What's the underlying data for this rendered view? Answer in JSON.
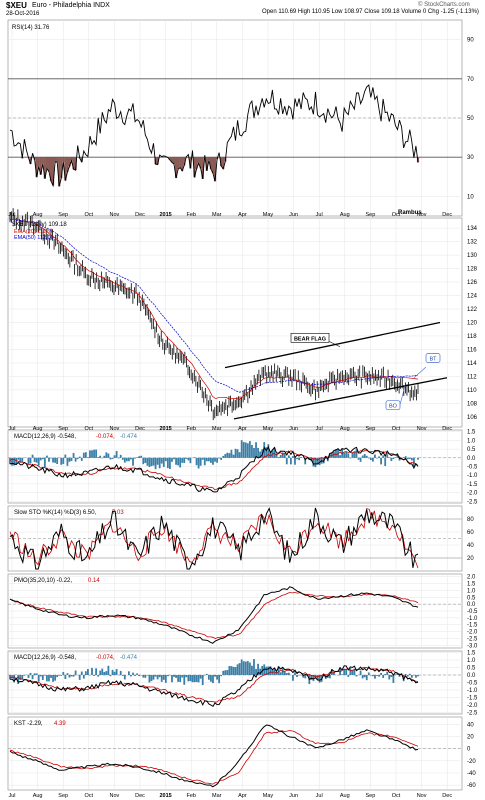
{
  "header": {
    "symbol": "$XEU",
    "name": "Euro - Philadelphia",
    "exchange": "INDX",
    "date": "28-Oct-2016",
    "quote": "Open 110.69  High 110.95  Low 108.97  Close 109.18  Volume 0  Chg -1.25 (-1.13%)",
    "copyright": "© StockCharts.com"
  },
  "rsi": {
    "label": "RSI(14) 31.76",
    "ticks": [
      "90",
      "70",
      "50",
      "30",
      "10"
    ],
    "watermark": "Rambus"
  },
  "price": {
    "label": "$XEU (Daily) 109.18",
    "ema20": "EMA(20) 111.57",
    "ema50": "EMA(50) 112.09",
    "ticks": [
      "134",
      "132",
      "130",
      "128",
      "126",
      "124",
      "122",
      "120",
      "118",
      "116",
      "114",
      "112",
      "110",
      "108",
      "106"
    ],
    "bear_flag": "BEAR FLAG",
    "bt": "BT",
    "bo": "BO"
  },
  "macd": {
    "label_a": "MACD(12,26,9) -0.548,",
    "label_b": "-0.074,",
    "label_c": "-0.474",
    "ticks": [
      "1.5",
      "1.0",
      "0.5",
      "0.0",
      "-0.5",
      "-1.0",
      "-1.5",
      "-2.0",
      "-2.5"
    ]
  },
  "sto": {
    "label_a": "Slow STO %K(14) %D(3) 6.50,",
    "label_b": "7.03",
    "ticks": [
      "80",
      "60",
      "40",
      "20"
    ]
  },
  "pmo": {
    "label_a": "PMO(35,20,10) -0.22,",
    "label_b": "0.14",
    "ticks": [
      "2.0",
      "1.5",
      "1.0",
      "0.5",
      "0.0",
      "-0.5",
      "-1.0",
      "-1.5",
      "-2.0",
      "-2.5",
      "-3.0"
    ]
  },
  "macd2": {
    "label_a": "MACD(12,26,9) -0.548,",
    "label_b": "-0.074,",
    "label_c": "-0.474",
    "ticks": [
      "1.5",
      "1.0",
      "0.5",
      "0.0",
      "-0.5",
      "-1.0",
      "-1.5",
      "-2.0",
      "-2.5"
    ]
  },
  "kst": {
    "label_a": "KST -2.29,",
    "label_b": "4.39",
    "ticks": [
      "40",
      "20",
      "0",
      "-20",
      "-40",
      "-60"
    ]
  },
  "xaxis": [
    "Jul",
    "Aug",
    "Sep",
    "Oct",
    "Nov",
    "Dec",
    "2015",
    "Feb",
    "Mar",
    "Apr",
    "May",
    "Jun",
    "Jul",
    "Aug",
    "Sep",
    "Oct",
    "Nov",
    "Dec"
  ],
  "colors": {
    "price": "#000000",
    "ema20": "#cc0000",
    "ema50": "#0000cc",
    "histogram": "#3a7fa8",
    "rsi_fill": "#8b5a55",
    "signal": "#cc0000"
  },
  "chart_data": [
    {
      "type": "line",
      "panel": "rsi",
      "title": "RSI(14) 31.76",
      "ylim": [
        0,
        100
      ],
      "levels": [
        70,
        50,
        30
      ],
      "x": [
        "Jul",
        "Aug",
        "Sep",
        "Oct",
        "Nov",
        "Dec",
        "2015",
        "Feb",
        "Mar",
        "Apr",
        "May",
        "Jun",
        "Jul",
        "Aug",
        "Sep",
        "Oct",
        "Nov"
      ],
      "values": [
        44,
        26,
        20,
        34,
        56,
        50,
        24,
        28,
        22,
        46,
        62,
        56,
        58,
        48,
        62,
        48,
        32
      ]
    },
    {
      "type": "line",
      "panel": "price",
      "title": "$XEU (Daily) 109.18",
      "ylim": [
        105,
        135
      ],
      "x": [
        "Jul",
        "Aug",
        "Sep",
        "Oct",
        "Nov",
        "Dec",
        "2015",
        "Feb",
        "Mar",
        "Apr",
        "May",
        "Jun",
        "Jul",
        "Aug",
        "Sep",
        "Oct",
        "Nov"
      ],
      "series": [
        {
          "name": "$XEU",
          "values": [
            135.5,
            134.5,
            131,
            127,
            125.5,
            124,
            117,
            113.5,
            107,
            108.5,
            112.5,
            112,
            110,
            112,
            112,
            111.5,
            109.2
          ]
        },
        {
          "name": "EMA(20)",
          "values": [
            135.4,
            134.7,
            131.8,
            127.8,
            126,
            124.5,
            118.5,
            114.5,
            108.8,
            108.7,
            111.8,
            111.8,
            110.3,
            111.5,
            112,
            111.9,
            111.6
          ]
        },
        {
          "name": "EMA(50)",
          "values": [
            135.2,
            134.9,
            132.8,
            129.5,
            127.4,
            125.6,
            121,
            116.3,
            111.5,
            109.6,
            111,
            111.4,
            110.8,
            111.2,
            111.7,
            112,
            112.1
          ]
        }
      ]
    },
    {
      "type": "line",
      "panel": "macd",
      "title": "MACD(12,26,9)",
      "ylim": [
        -2.5,
        1.5
      ],
      "x": [
        "Jul",
        "Aug",
        "Sep",
        "Oct",
        "Nov",
        "Dec",
        "2015",
        "Feb",
        "Mar",
        "Apr",
        "May",
        "Jun",
        "Jul",
        "Aug",
        "Sep",
        "Oct",
        "Nov"
      ],
      "series": [
        {
          "name": "MACD",
          "values": [
            -0.2,
            -0.6,
            -1.0,
            -0.9,
            -0.5,
            -0.7,
            -1.2,
            -1.6,
            -2.0,
            -1.0,
            0.5,
            0.3,
            -0.3,
            0.5,
            0.4,
            0.2,
            -0.55
          ]
        },
        {
          "name": "Signal",
          "values": [
            -0.1,
            -0.45,
            -0.9,
            -0.95,
            -0.6,
            -0.65,
            -1.0,
            -1.45,
            -1.8,
            -1.4,
            0.1,
            0.35,
            -0.1,
            0.3,
            0.45,
            0.25,
            -0.47
          ]
        }
      ]
    },
    {
      "type": "line",
      "panel": "sto",
      "title": "Slow STO %K(14) %D(3)",
      "ylim": [
        0,
        100
      ],
      "levels": [
        80,
        50,
        20
      ],
      "x": [
        "Jul",
        "Aug",
        "Sep",
        "Oct",
        "Nov",
        "Dec",
        "2015",
        "Feb",
        "Mar",
        "Apr",
        "May",
        "Jun",
        "Jul",
        "Aug",
        "Sep",
        "Oct",
        "Nov"
      ],
      "series": [
        {
          "name": "%K",
          "values": [
            55,
            10,
            60,
            15,
            80,
            20,
            75,
            10,
            70,
            30,
            90,
            20,
            85,
            40,
            90,
            70,
            6.5
          ]
        },
        {
          "name": "%D",
          "values": [
            60,
            15,
            55,
            20,
            75,
            25,
            70,
            15,
            65,
            35,
            85,
            25,
            80,
            45,
            85,
            75,
            7.0
          ]
        }
      ]
    },
    {
      "type": "line",
      "panel": "pmo",
      "title": "PMO(35,20,10)",
      "ylim": [
        -3.0,
        2.0
      ],
      "x": [
        "Jul",
        "Aug",
        "Sep",
        "Oct",
        "Nov",
        "Dec",
        "2015",
        "Feb",
        "Mar",
        "Apr",
        "May",
        "Jun",
        "Jul",
        "Aug",
        "Sep",
        "Oct",
        "Nov"
      ],
      "series": [
        {
          "name": "PMO",
          "values": [
            0.3,
            -0.3,
            -0.8,
            -1.0,
            -0.8,
            -1.0,
            -1.5,
            -2.2,
            -2.8,
            -1.8,
            0.7,
            1.2,
            0.4,
            0.6,
            0.8,
            0.5,
            -0.22
          ]
        },
        {
          "name": "Signal",
          "values": [
            0.3,
            -0.2,
            -0.6,
            -0.9,
            -0.9,
            -0.95,
            -1.3,
            -1.9,
            -2.5,
            -2.2,
            0.0,
            0.9,
            0.6,
            0.55,
            0.7,
            0.6,
            0.14
          ]
        }
      ]
    },
    {
      "type": "line",
      "panel": "kst",
      "title": "KST",
      "ylim": [
        -65,
        50
      ],
      "x": [
        "Jul",
        "Aug",
        "Sep",
        "Oct",
        "Nov",
        "Dec",
        "2015",
        "Feb",
        "Mar",
        "Apr",
        "May",
        "Jun",
        "Jul",
        "Aug",
        "Sep",
        "Oct",
        "Nov"
      ],
      "series": [
        {
          "name": "KST",
          "values": [
            -5,
            -20,
            -35,
            -30,
            -25,
            -30,
            -40,
            -55,
            -62,
            -20,
            40,
            20,
            0,
            15,
            30,
            15,
            -2.29
          ]
        },
        {
          "name": "Signal",
          "values": [
            -3,
            -15,
            -30,
            -33,
            -28,
            -28,
            -36,
            -50,
            -58,
            -38,
            25,
            30,
            8,
            10,
            25,
            20,
            4.39
          ]
        }
      ]
    }
  ]
}
